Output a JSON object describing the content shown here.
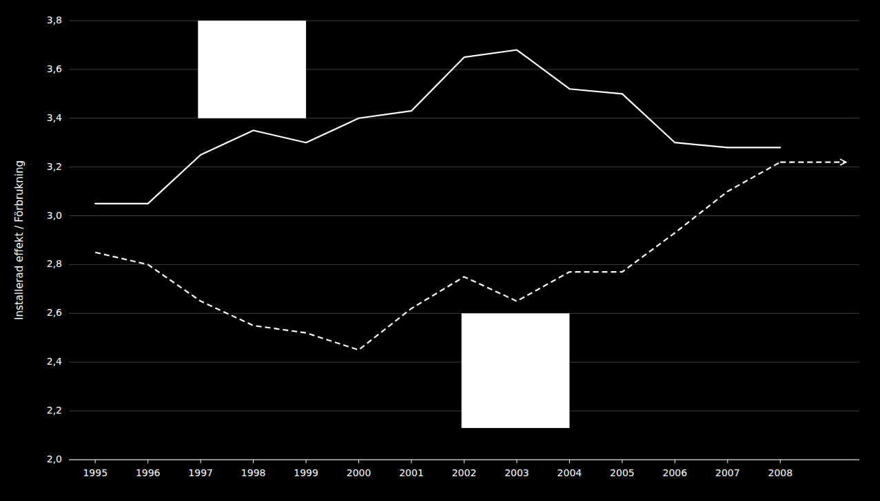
{
  "chart_data": {
    "type": "line",
    "y_label": "Installerad effekt / Förbrukning",
    "x": [
      1995,
      1996,
      1997,
      1998,
      1999,
      2000,
      2001,
      2002,
      2003,
      2004,
      2005,
      2006,
      2007,
      2008
    ],
    "series": [
      {
        "color": "#ffffff",
        "line_style": "solid",
        "values": [
          3.05,
          3.05,
          3.25,
          3.35,
          3.3,
          3.4,
          3.43,
          3.65,
          3.68,
          3.52,
          3.5,
          3.3,
          3.28,
          3.28
        ]
      },
      {
        "color": "#ffffff",
        "line_style": "dashed",
        "values": [
          2.85,
          2.8,
          2.65,
          2.55,
          2.52,
          2.45,
          2.62,
          2.75,
          2.65,
          2.77,
          2.77,
          2.93,
          3.1,
          3.22
        ]
      }
    ],
    "arrow": {
      "x": [
        2008,
        2009.25
      ],
      "y": 3.22,
      "color": "#ffffff",
      "line_style": "dashed"
    },
    "rectangles": [
      {
        "x": 1996.95,
        "y": 3.4,
        "width": 2.05,
        "height": 0.4,
        "color": "#ffffff"
      },
      {
        "x": 2001.95,
        "y": 2.13,
        "width": 2.05,
        "height": 0.47,
        "color": "#ffffff"
      }
    ],
    "xlim": [
      1994.5,
      2009.5
    ],
    "xticks": [
      1995,
      1996,
      1997,
      1998,
      1999,
      2000,
      2001,
      2002,
      2003,
      2004,
      2005,
      2006,
      2007,
      2008
    ],
    "ylim": [
      2.0,
      3.8
    ],
    "yticks": [
      {
        "value": 2.0,
        "label": "2,0"
      },
      {
        "value": 2.2,
        "label": "2,2"
      },
      {
        "value": 2.4,
        "label": "2,4"
      },
      {
        "value": 2.6,
        "label": "2,6"
      },
      {
        "value": 2.8,
        "label": "2,8"
      },
      {
        "value": 3.0,
        "label": "3,0"
      },
      {
        "value": 3.2,
        "label": "3,2"
      },
      {
        "value": 3.4,
        "label": "3,4"
      },
      {
        "value": 3.6,
        "label": "3,6"
      },
      {
        "value": 3.8,
        "label": "3,8"
      }
    ],
    "grid": true
  }
}
